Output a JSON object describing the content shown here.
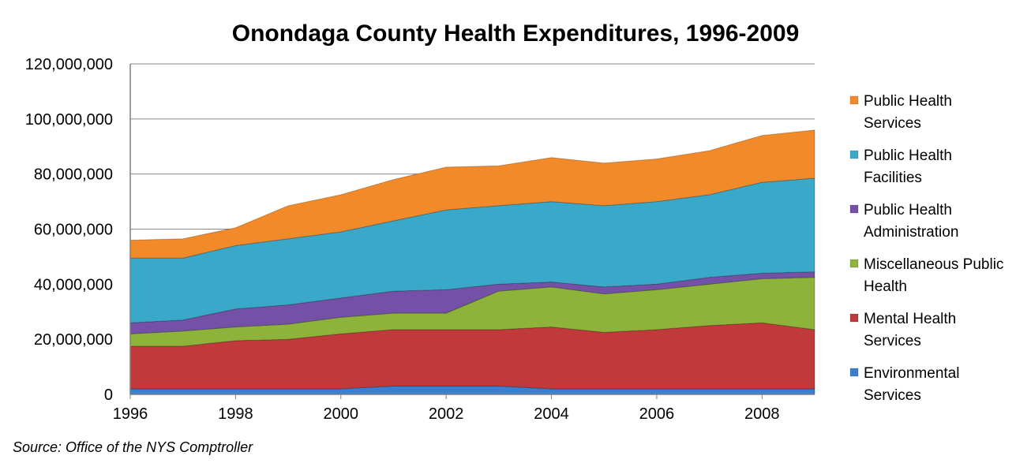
{
  "chart_data": {
    "type": "area",
    "stacked": true,
    "title": "Onondaga County Health Expenditures, 1996-2009",
    "x": [
      1996,
      1997,
      1998,
      1999,
      2000,
      2001,
      2002,
      2003,
      2004,
      2005,
      2006,
      2007,
      2008,
      2009
    ],
    "xticks": [
      "1996",
      "1998",
      "2000",
      "2002",
      "2004",
      "2006",
      "2008"
    ],
    "xlim": [
      1996,
      2009
    ],
    "ylim": [
      0,
      120000000
    ],
    "yticks": [
      "0",
      "20,000,000",
      "40,000,000",
      "60,000,000",
      "80,000,000",
      "100,000,000",
      "120,000,000"
    ],
    "grid": "horizontal",
    "legend_position": "right",
    "series": [
      {
        "name": "Environmental Services",
        "color": "#3a7fd1",
        "values": [
          2000000,
          2000000,
          2000000,
          2000000,
          2000000,
          3000000,
          3000000,
          3000000,
          2000000,
          2000000,
          2000000,
          2000000,
          2000000,
          2000000
        ]
      },
      {
        "name": "Mental Health Services",
        "color": "#c0393b",
        "values": [
          15500000,
          15500000,
          17500000,
          18000000,
          20000000,
          20500000,
          20500000,
          20500000,
          22500000,
          20500000,
          21500000,
          23000000,
          24000000,
          21500000
        ]
      },
      {
        "name": "Miscellaneous Public Health",
        "color": "#8db33a",
        "values": [
          4500000,
          5500000,
          5000000,
          5500000,
          6000000,
          6000000,
          6000000,
          14000000,
          14500000,
          14000000,
          14500000,
          15000000,
          16000000,
          19000000
        ]
      },
      {
        "name": "Public Health Administration",
        "color": "#7451a6",
        "values": [
          4000000,
          4000000,
          6500000,
          7000000,
          7000000,
          8000000,
          8500000,
          2500000,
          1800000,
          2500000,
          2000000,
          2500000,
          2000000,
          2000000
        ]
      },
      {
        "name": "Public Health Facilities",
        "color": "#3aa8c8",
        "values": [
          23500000,
          22500000,
          23000000,
          24000000,
          24000000,
          25500000,
          29000000,
          28500000,
          29200000,
          29500000,
          30000000,
          30000000,
          33000000,
          34000000
        ]
      },
      {
        "name": "Public Health Services",
        "color": "#f28a2a",
        "values": [
          6500000,
          7000000,
          6500000,
          12000000,
          13500000,
          15000000,
          15500000,
          14500000,
          16000000,
          15500000,
          15500000,
          16000000,
          17000000,
          17500000
        ]
      }
    ],
    "legend": [
      {
        "lines": [
          "Public Health",
          "Services"
        ],
        "color": "#f28a2a"
      },
      {
        "lines": [
          "Public Health",
          "Facilities"
        ],
        "color": "#3aa8c8"
      },
      {
        "lines": [
          "Public Health",
          "Administration"
        ],
        "color": "#7451a6"
      },
      {
        "lines": [
          "Miscellaneous Public",
          "Health"
        ],
        "color": "#8db33a"
      },
      {
        "lines": [
          "Mental Health",
          "Services"
        ],
        "color": "#c0393b"
      },
      {
        "lines": [
          "Environmental",
          "Services"
        ],
        "color": "#3a7fd1"
      }
    ],
    "source": "Source:  Office of the NYS Comptroller"
  }
}
